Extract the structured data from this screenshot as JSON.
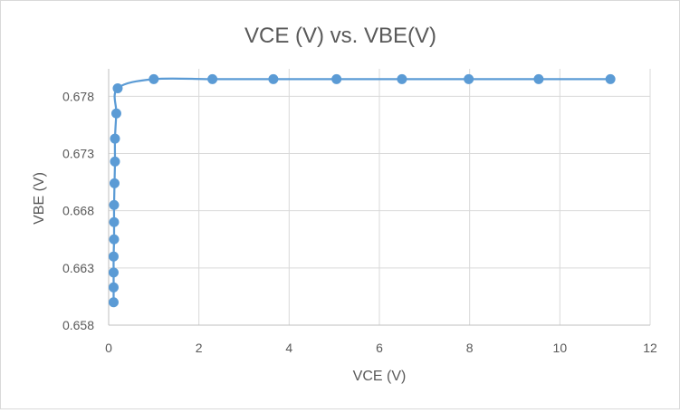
{
  "chart_data": {
    "type": "scatter",
    "title": "VCE (V) vs. VBE(V)",
    "xlabel": "VCE (V)",
    "ylabel": "VBE (V)",
    "xlim": [
      0,
      12
    ],
    "ylim": [
      0.658,
      0.6804
    ],
    "x_ticks": [
      0,
      2,
      4,
      6,
      8,
      10,
      12
    ],
    "y_ticks": [
      0.658,
      0.663,
      0.668,
      0.673,
      0.678
    ],
    "x_tick_labels": [
      "0",
      "2",
      "4",
      "6",
      "8",
      "10",
      "12"
    ],
    "y_tick_labels": [
      "0.658",
      "0.663",
      "0.668",
      "0.673",
      "0.678"
    ],
    "grid": true,
    "legend": "none",
    "smooth_line": true,
    "series": [
      {
        "color": "#5b9bd5",
        "points": [
          {
            "x": 0.11,
            "y": 0.66
          },
          {
            "x": 0.11,
            "y": 0.6613
          },
          {
            "x": 0.11,
            "y": 0.6626
          },
          {
            "x": 0.11,
            "y": 0.664
          },
          {
            "x": 0.12,
            "y": 0.6655
          },
          {
            "x": 0.12,
            "y": 0.667
          },
          {
            "x": 0.12,
            "y": 0.6685
          },
          {
            "x": 0.13,
            "y": 0.6704
          },
          {
            "x": 0.14,
            "y": 0.6723
          },
          {
            "x": 0.14,
            "y": 0.6743
          },
          {
            "x": 0.17,
            "y": 0.6765
          },
          {
            "x": 0.2,
            "y": 0.6787
          },
          {
            "x": 1.0,
            "y": 0.6795
          },
          {
            "x": 2.3,
            "y": 0.6795
          },
          {
            "x": 3.65,
            "y": 0.6795
          },
          {
            "x": 5.05,
            "y": 0.6795
          },
          {
            "x": 6.5,
            "y": 0.6795
          },
          {
            "x": 7.98,
            "y": 0.6795
          },
          {
            "x": 9.53,
            "y": 0.6795
          },
          {
            "x": 11.12,
            "y": 0.6795
          }
        ]
      }
    ]
  }
}
